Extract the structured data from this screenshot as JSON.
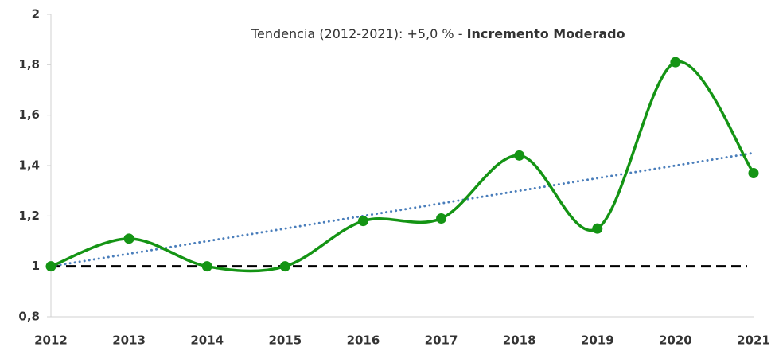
{
  "chart_data": {
    "type": "line",
    "annotation": {
      "text": "Tendencia (2012-2021): +5,0 % - ",
      "emphasis": "Incremento Moderado"
    },
    "categories": [
      "2012",
      "2013",
      "2014",
      "2015",
      "2016",
      "2017",
      "2018",
      "2019",
      "2020",
      "2021"
    ],
    "series": [
      {
        "color": "#149414",
        "values": [
          1.0,
          1.11,
          1.0,
          1.0,
          1.18,
          1.19,
          1.44,
          1.15,
          1.81,
          1.37
        ]
      }
    ],
    "trendline": {
      "color": "#4a7ebb",
      "values": [
        1.0,
        1.45
      ]
    },
    "reference_line": {
      "color": "#000000",
      "value": 1
    },
    "ylim": [
      0.8,
      2
    ],
    "yticks": [
      {
        "value": 0.8,
        "label": "0,8"
      },
      1,
      {
        "value": 1.2,
        "label": "1,2"
      },
      {
        "value": 1.4,
        "label": "1,4"
      },
      {
        "value": 1.6,
        "label": "1,6"
      },
      {
        "value": 1.8,
        "label": "1,8"
      },
      2
    ],
    "grid": false
  }
}
